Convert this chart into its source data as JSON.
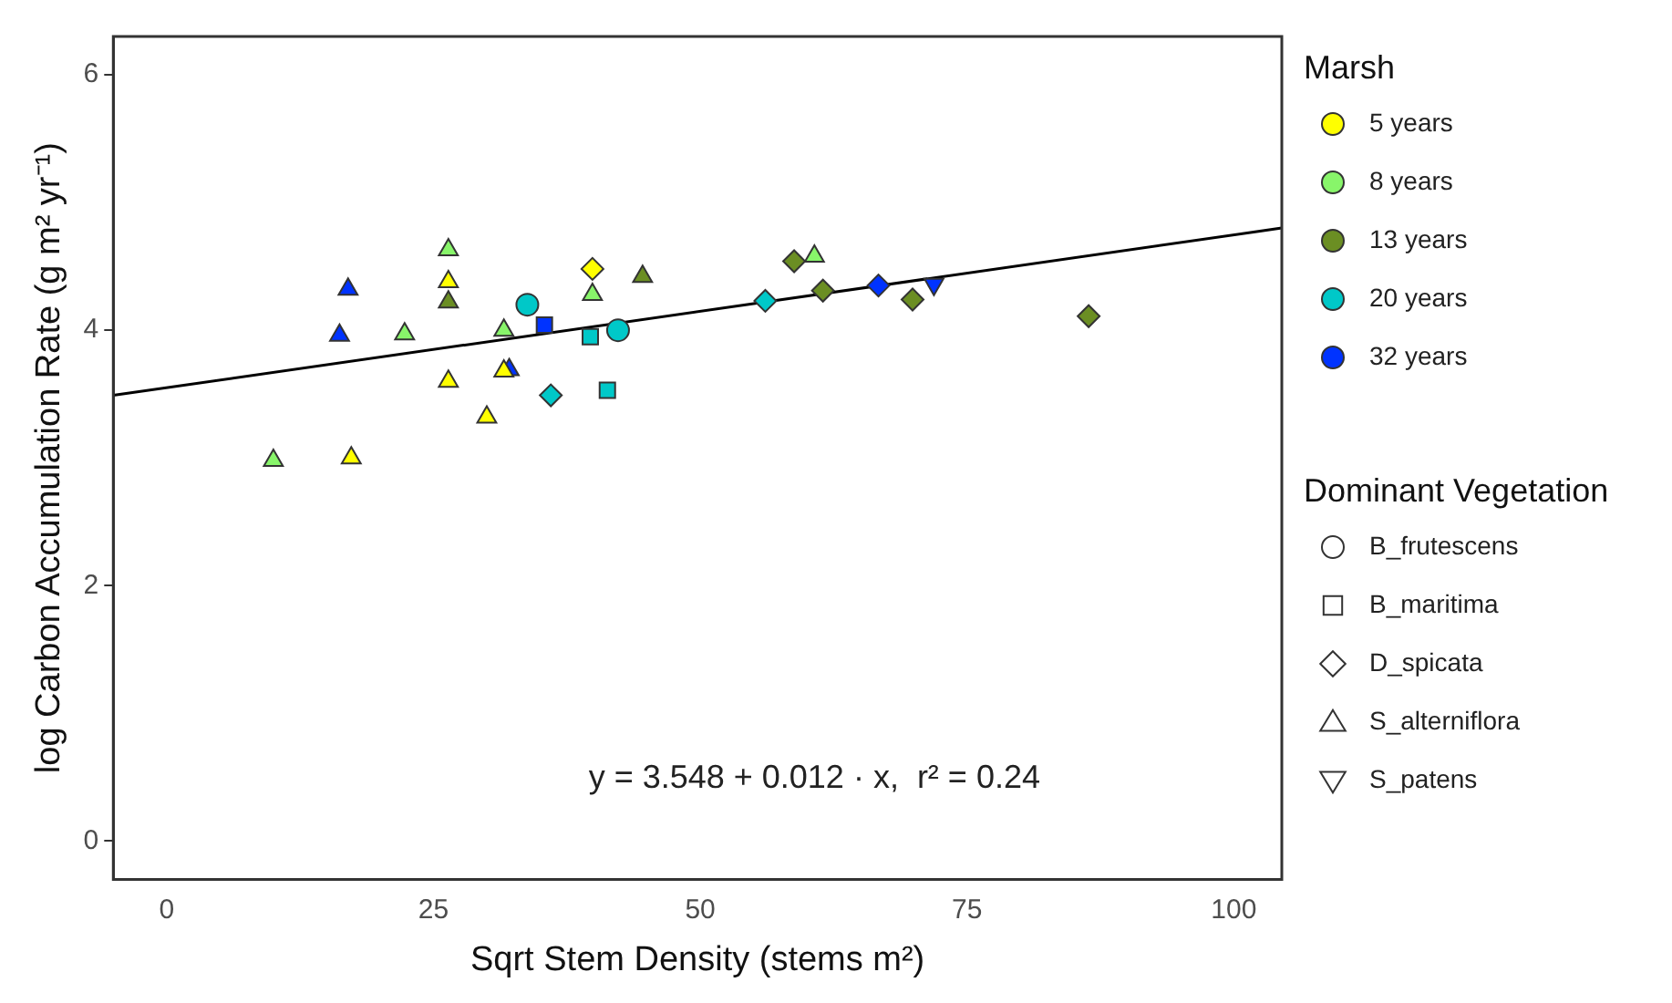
{
  "chart_data": {
    "type": "scatter",
    "xlabel": "Sqrt Stem Density (stems m²)",
    "ylabel": "log Carbon Accumulation Rate (g m² yr⁻¹)",
    "xlim": [
      -5,
      104.5
    ],
    "xticks": [
      0,
      25,
      50,
      75,
      100
    ],
    "ylim": [
      -0.3,
      6.3
    ],
    "yticks": [
      0,
      2,
      4,
      6
    ],
    "grid": false,
    "legend": "right",
    "legend_title": [
      "Marsh",
      "Dominant Vegetation"
    ],
    "annotations": [
      "y = 3.548 + 0.012 · x,  r² = 0.24"
    ],
    "series": [
      {
        "name": "5 years",
        "color": "#ffff00",
        "marker": "circle"
      },
      {
        "name": "8 years",
        "color": "#88f56a",
        "marker": "circle"
      },
      {
        "name": "13 years",
        "color": "#6b8e23",
        "marker": "circle"
      },
      {
        "name": "20 years",
        "color": "#00c8c8",
        "marker": "circle"
      },
      {
        "name": "32 years",
        "color": "#0033ff",
        "marker": "circle"
      },
      {
        "name": "B_frutescens",
        "color": "#ffffff",
        "marker": "circle"
      },
      {
        "name": "B_maritima",
        "color": "#ffffff",
        "marker": "square"
      },
      {
        "name": "D_spicata",
        "color": "#ffffff",
        "marker": "diamond"
      },
      {
        "name": "S_alterniflora",
        "color": "#ffffff",
        "marker": "triangle"
      },
      {
        "name": "S_patens",
        "color": "#ffffff",
        "marker": "triangle_down"
      },
      {
        "type": "line",
        "color": "#000000",
        "marker": "none",
        "x": [
          -5,
          104.5
        ],
        "values": [
          3.49,
          4.8
        ]
      },
      {
        "color": "#0033ff",
        "marker": "triangle",
        "x": [
          17.0,
          16.2,
          32.1
        ],
        "values": [
          4.32,
          3.96,
          3.69
        ]
      },
      {
        "color": "#6b8e23",
        "marker": "triangle",
        "x": [
          26.4,
          44.6
        ],
        "values": [
          4.22,
          4.42
        ]
      },
      {
        "color": "#6b8e23",
        "marker": "diamond",
        "x": [
          58.8,
          61.5,
          69.9,
          86.4
        ],
        "values": [
          4.54,
          4.31,
          4.24,
          4.11
        ]
      },
      {
        "color": "#ffff00",
        "marker": "triangle",
        "x": [
          26.4,
          31.6,
          26.4,
          30.0,
          17.3
        ],
        "values": [
          4.38,
          3.68,
          3.6,
          3.32,
          3.0
        ]
      },
      {
        "color": "#ffff00",
        "marker": "diamond",
        "x": [
          39.9
        ],
        "values": [
          4.48
        ]
      },
      {
        "color": "#88f56a",
        "marker": "triangle",
        "x": [
          26.4,
          22.3,
          31.6,
          10.0,
          39.9,
          60.7
        ],
        "values": [
          4.63,
          3.97,
          4.0,
          2.98,
          4.28,
          4.58
        ]
      },
      {
        "color": "#00c8c8",
        "marker": "circle",
        "x": [
          33.8,
          42.3
        ],
        "values": [
          4.2,
          4.0
        ]
      },
      {
        "color": "#00c8c8",
        "marker": "square",
        "x": [
          39.7,
          41.3
        ],
        "values": [
          3.95,
          3.53
        ]
      },
      {
        "color": "#00c8c8",
        "marker": "diamond",
        "x": [
          36.0,
          56.1
        ],
        "values": [
          3.49,
          4.23
        ]
      },
      {
        "color": "#0033ff",
        "marker": "square",
        "x": [
          35.4
        ],
        "values": [
          4.04
        ]
      },
      {
        "color": "#0033ff",
        "marker": "diamond",
        "x": [
          66.7
        ],
        "values": [
          4.35
        ]
      },
      {
        "color": "#0033ff",
        "marker": "triangle_down",
        "x": [
          71.9
        ],
        "values": [
          4.36
        ]
      }
    ]
  }
}
